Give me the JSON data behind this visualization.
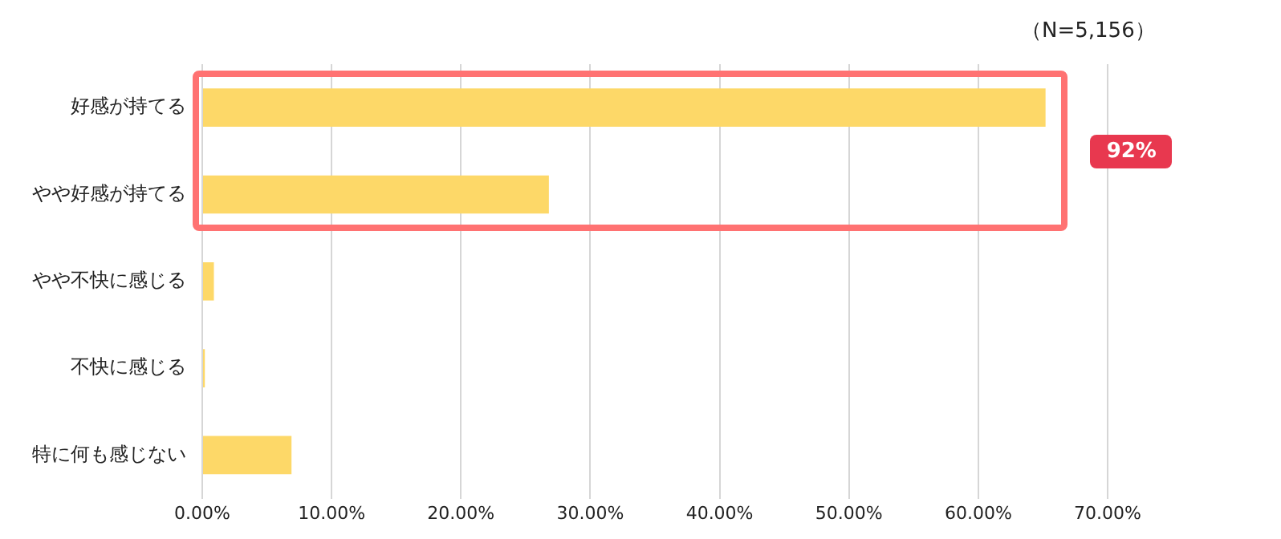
{
  "chart_data": {
    "type": "bar",
    "orientation": "horizontal",
    "categories": [
      "好感が持てる",
      "やや好感が持てる",
      "やや不快に感じる",
      "不快に感じる",
      "特に何も感じない"
    ],
    "values": [
      65.2,
      26.8,
      0.9,
      0.2,
      6.9
    ],
    "color": "#fdd868",
    "xlim": [
      0,
      70
    ],
    "xticks": [
      {
        "value": 0,
        "label": "0.00%"
      },
      {
        "value": 10,
        "label": "10.00%"
      },
      {
        "value": 20,
        "label": "20.00%"
      },
      {
        "value": 30,
        "label": "30.00%"
      },
      {
        "value": 40,
        "label": "40.00%"
      },
      {
        "value": 50,
        "label": "50.00%"
      },
      {
        "value": 60,
        "label": "60.00%"
      },
      {
        "value": 70,
        "label": "70.00%"
      }
    ],
    "grid": "x",
    "legend": false,
    "annotations": [
      "（N=5,156）",
      "92%"
    ]
  }
}
